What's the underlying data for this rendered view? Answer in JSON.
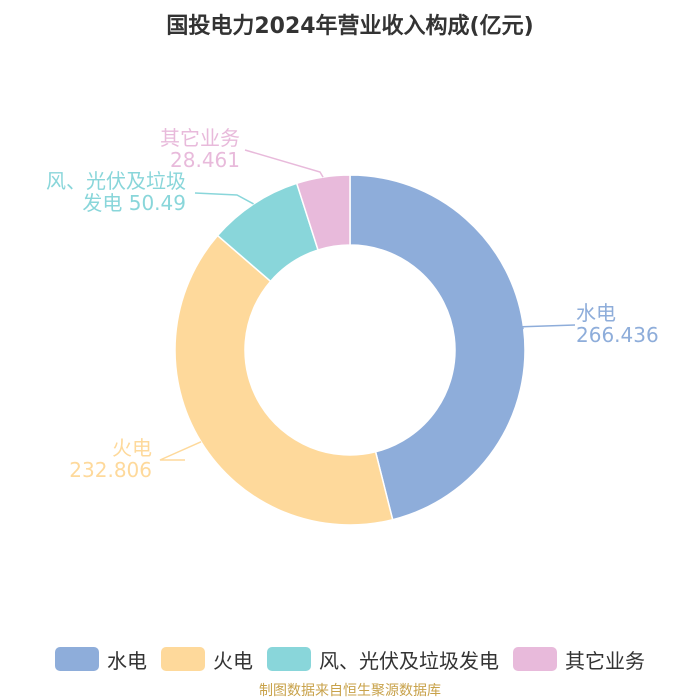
{
  "chart_data": {
    "type": "pie",
    "title": "国投电力2024年营业收入构成(亿元)",
    "slices": [
      {
        "name": "水电",
        "value": 266.436,
        "label_lines": [
          "水电",
          "266.436"
        ],
        "color": "#8eadda"
      },
      {
        "name": "火电",
        "value": 232.806,
        "label_lines": [
          "火电",
          "232.806"
        ],
        "color": "#fed99b"
      },
      {
        "name": "风、光伏及垃圾发电",
        "value": 50.49,
        "label_lines": [
          "风、光伏及垃圾",
          "发电 50.49"
        ],
        "color": "#89d6da"
      },
      {
        "name": "其它业务",
        "value": 28.461,
        "label_lines": [
          "其它业务",
          "28.461"
        ],
        "color": "#e8badb"
      }
    ],
    "legend_position": "bottom",
    "donut": true
  },
  "source": "制图数据来自恒生聚源数据库"
}
